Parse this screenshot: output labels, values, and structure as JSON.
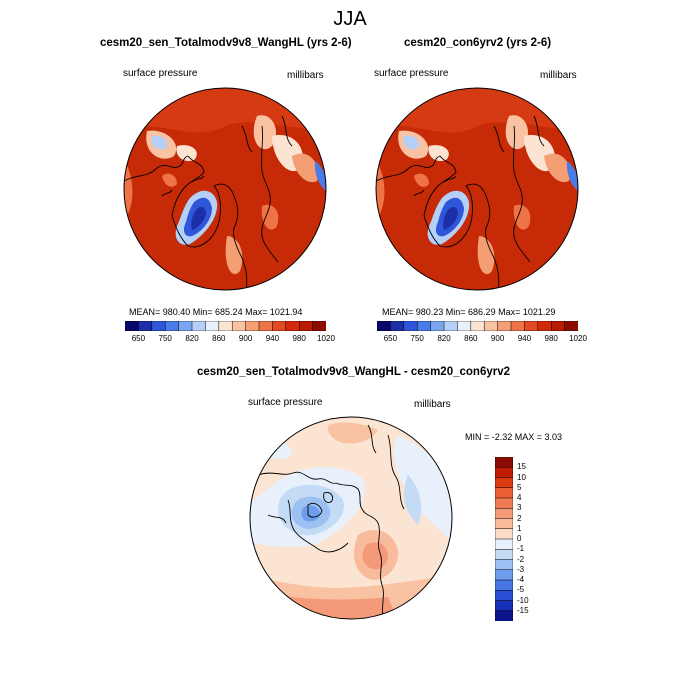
{
  "figure": {
    "title": "JJA"
  },
  "panels": [
    {
      "title": "cesm20_sen_Totalmodv9v8_WangHL (yrs 2-6)",
      "left_label": "surface pressure",
      "right_label": "millibars",
      "stats": "MEAN= 980.40  Min= 685.24  Max= 1021.94"
    },
    {
      "title": "cesm20_con6yrv2 (yrs 2-6)",
      "left_label": "surface pressure",
      "right_label": "millibars",
      "stats": "MEAN= 980.23  Min= 686.29  Max= 1021.29"
    },
    {
      "title": "cesm20_sen_Totalmodv9v8_WangHL - cesm20_con6yrv2",
      "left_label": "surface pressure",
      "right_label": "millibars",
      "stats": "MIN =  -2.32  MAX =   3.03"
    }
  ],
  "colorbar_abs": {
    "colors": [
      "#08086b",
      "#1c2ea8",
      "#2f55d8",
      "#4a7ce8",
      "#7aa6f0",
      "#b4d0f8",
      "#e7f0fb",
      "#fce4d3",
      "#f9c2a2",
      "#f49e74",
      "#ee7448",
      "#e44a22",
      "#d22a0a",
      "#b81a02",
      "#8b0c02"
    ],
    "tick_labels": [
      "650",
      "750",
      "820",
      "860",
      "900",
      "940",
      "980",
      "1020"
    ]
  },
  "colorbar_diff": {
    "colors": [
      "#8b0c02",
      "#c01e04",
      "#dc3a12",
      "#ed5e34",
      "#f27b55",
      "#f59a78",
      "#f8bb9c",
      "#fbdcc8",
      "#e8f1fb",
      "#c4dbf6",
      "#9cc0f2",
      "#6f9ded",
      "#4777e4",
      "#2a4fd6",
      "#1730b8",
      "#0a1488"
    ],
    "tick_labels": [
      "15",
      "10",
      "5",
      "4",
      "3",
      "2",
      "1",
      "0",
      "-1",
      "-2",
      "-3",
      "-4",
      "-5",
      "-10",
      "-15"
    ]
  }
}
